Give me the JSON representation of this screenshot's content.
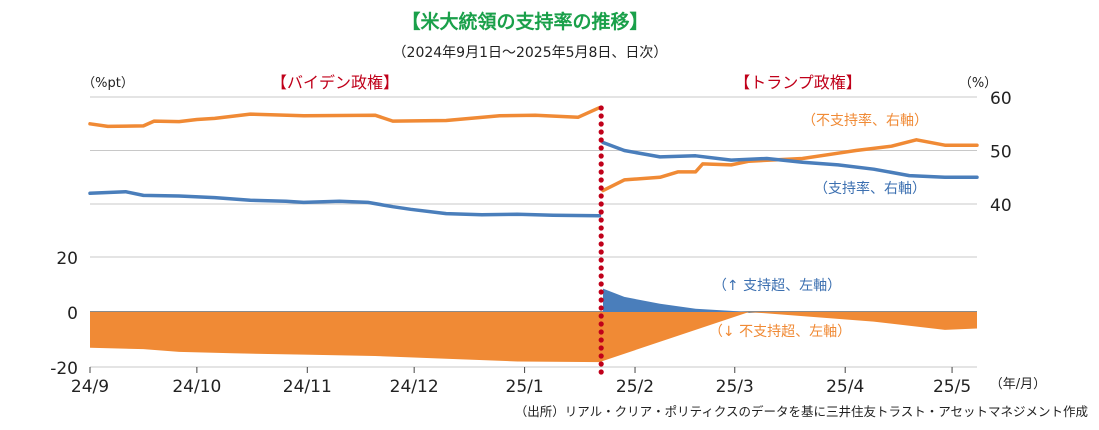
{
  "chart_data": {
    "type": "line",
    "title": "【米大統領の支持率の推移】",
    "subtitle": "（2024年9月1日～2025年5月8日、日次）",
    "source_note": "（出所）リアル・クリア・ポリティクスのデータを基に三井住友トラスト・アセットマネジメント作成",
    "periods": [
      {
        "label": "【バイデン政権】",
        "color": "#c0001a"
      },
      {
        "label": "【トランプ政権】",
        "color": "#c0001a"
      }
    ],
    "left_axis": {
      "unit_label": "（%pt）",
      "ticks": [
        "20",
        "0",
        "-20"
      ],
      "ylim": [
        -22,
        38
      ]
    },
    "right_axis": {
      "unit_label": "（%）",
      "ticks": [
        "60",
        "50",
        "40"
      ],
      "ylim": [
        30,
        60
      ]
    },
    "x_axis": {
      "unit_label": "（年/月）",
      "ticks": [
        "24/9",
        "24/10",
        "24/11",
        "24/12",
        "25/1",
        "25/2",
        "25/3",
        "25/4",
        "25/5"
      ],
      "tick_days": [
        0,
        30,
        61,
        91,
        122,
        153,
        181,
        212,
        242
      ],
      "xlim_days": [
        0,
        249
      ]
    },
    "transition_day": 143,
    "series": [
      {
        "name": "（不支持率、右軸）",
        "axis": "right",
        "color": "#f08a35",
        "points": [
          [
            0,
            55
          ],
          [
            5,
            54.5
          ],
          [
            15,
            54.6
          ],
          [
            18,
            55.5
          ],
          [
            25,
            55.4
          ],
          [
            30,
            55.8
          ],
          [
            35,
            56
          ],
          [
            45,
            56.8
          ],
          [
            60,
            56.5
          ],
          [
            80,
            56.6
          ],
          [
            85,
            55.5
          ],
          [
            100,
            55.6
          ],
          [
            115,
            56.5
          ],
          [
            125,
            56.6
          ],
          [
            137,
            56.2
          ],
          [
            143,
            58
          ],
          [
            144,
            42.5
          ],
          [
            150,
            44.5
          ],
          [
            160,
            45
          ],
          [
            165,
            46
          ],
          [
            170,
            46
          ],
          [
            172,
            47.5
          ],
          [
            180,
            47.3
          ],
          [
            185,
            48
          ],
          [
            200,
            48.5
          ],
          [
            210,
            49.5
          ],
          [
            215,
            50
          ],
          [
            225,
            50.8
          ],
          [
            232,
            52
          ],
          [
            240,
            51
          ],
          [
            249,
            51
          ]
        ]
      },
      {
        "name": "（支持率、右軸）",
        "axis": "right",
        "color": "#4a7ebb",
        "points": [
          [
            0,
            42
          ],
          [
            10,
            42.3
          ],
          [
            15,
            41.6
          ],
          [
            25,
            41.5
          ],
          [
            35,
            41.2
          ],
          [
            45,
            40.7
          ],
          [
            55,
            40.5
          ],
          [
            60,
            40.3
          ],
          [
            70,
            40.5
          ],
          [
            78,
            40.3
          ],
          [
            85,
            39.5
          ],
          [
            90,
            39
          ],
          [
            100,
            38.2
          ],
          [
            110,
            38
          ],
          [
            120,
            38.1
          ],
          [
            130,
            37.9
          ],
          [
            143,
            37.8
          ],
          [
            144,
            51.5
          ],
          [
            150,
            50
          ],
          [
            160,
            48.8
          ],
          [
            170,
            49
          ],
          [
            180,
            48.2
          ],
          [
            190,
            48.5
          ],
          [
            200,
            47.8
          ],
          [
            210,
            47.3
          ],
          [
            220,
            46.5
          ],
          [
            230,
            45.3
          ],
          [
            240,
            45
          ],
          [
            249,
            45
          ]
        ]
      },
      {
        "name": "（↑ 支持超、左軸）",
        "axis": "left",
        "color": "#4a7ebb",
        "area": true,
        "points": [
          [
            144,
            8.5
          ],
          [
            150,
            5.5
          ],
          [
            160,
            3
          ],
          [
            170,
            1.2
          ],
          [
            180,
            0.4
          ],
          [
            185,
            0
          ],
          [
            249,
            0
          ]
        ]
      },
      {
        "name": "（↓ 不支持超、左軸）",
        "axis": "left",
        "color": "#f08a35",
        "area": true,
        "points": [
          [
            0,
            -13
          ],
          [
            15,
            -13.5
          ],
          [
            25,
            -14.5
          ],
          [
            40,
            -15
          ],
          [
            60,
            -15.5
          ],
          [
            80,
            -16
          ],
          [
            100,
            -17
          ],
          [
            120,
            -18
          ],
          [
            143,
            -18.2
          ],
          [
            185,
            0
          ],
          [
            200,
            -1.5
          ],
          [
            220,
            -3.5
          ],
          [
            240,
            -6.5
          ],
          [
            249,
            -6
          ]
        ]
      }
    ]
  }
}
